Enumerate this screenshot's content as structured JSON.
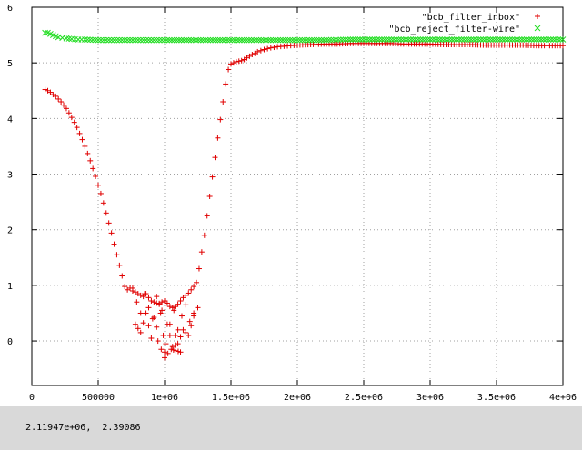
{
  "status": {
    "coords": "2.11947e+06,  2.39086"
  },
  "colors": {
    "series1": "#e00000",
    "series2": "#22dd22",
    "axis": "#000000",
    "grid": "#a0a0a0",
    "background": "#ffffff",
    "statusbar": "#d9d9d9"
  },
  "chart_data": {
    "type": "scatter",
    "title": "",
    "xlabel": "",
    "ylabel": "",
    "xlim": [
      0,
      4000000
    ],
    "ylim": [
      -0.8,
      6
    ],
    "grid": true,
    "legend_position": "top-right",
    "x_ticks": [
      {
        "value": 0,
        "label": "0"
      },
      {
        "value": 500000,
        "label": "500000"
      },
      {
        "value": 1000000,
        "label": "1e+06"
      },
      {
        "value": 1500000,
        "label": "1.5e+06"
      },
      {
        "value": 2000000,
        "label": "2e+06"
      },
      {
        "value": 2500000,
        "label": "2.5e+06"
      },
      {
        "value": 3000000,
        "label": "3e+06"
      },
      {
        "value": 3500000,
        "label": "3.5e+06"
      },
      {
        "value": 4000000,
        "label": "4e+06"
      }
    ],
    "y_ticks": [
      {
        "value": 0,
        "label": "0"
      },
      {
        "value": 1,
        "label": "1"
      },
      {
        "value": 2,
        "label": "2"
      },
      {
        "value": 3,
        "label": "3"
      },
      {
        "value": 4,
        "label": "4"
      },
      {
        "value": 5,
        "label": "5"
      },
      {
        "value": 6,
        "label": "6"
      }
    ],
    "series": [
      {
        "name": "\"bcb_filter_inbox\"",
        "marker": "+",
        "color": "#e00000",
        "x": [
          100000,
          120000,
          140000,
          160000,
          180000,
          200000,
          220000,
          240000,
          260000,
          280000,
          300000,
          320000,
          340000,
          360000,
          380000,
          400000,
          420000,
          440000,
          460000,
          480000,
          500000,
          520000,
          540000,
          560000,
          580000,
          600000,
          620000,
          640000,
          660000,
          680000,
          700000,
          720000,
          740000,
          760000,
          780000,
          800000,
          820000,
          840000,
          860000,
          880000,
          900000,
          920000,
          940000,
          960000,
          980000,
          1000000,
          1020000,
          1040000,
          1060000,
          1080000,
          1100000,
          1120000,
          1140000,
          1160000,
          1180000,
          1200000,
          1220000,
          1240000,
          1260000,
          1280000,
          1300000,
          1320000,
          1340000,
          1360000,
          1380000,
          1400000,
          1420000,
          1440000,
          1460000,
          1480000,
          1500000,
          1520000,
          1540000,
          1560000,
          1580000,
          1600000,
          1620000,
          1640000,
          1660000,
          1680000,
          1700000,
          1750000,
          1800000,
          1850000,
          1900000,
          1950000,
          2000000,
          2100000,
          2200000,
          2300000,
          2400000,
          2500000,
          2600000,
          2700000,
          2800000,
          2900000,
          3000000,
          3100000,
          3200000,
          3300000,
          3400000,
          3500000,
          3600000,
          3700000,
          3800000,
          3900000,
          4000000,
          760000,
          790000,
          820000,
          850000,
          880000,
          910000,
          940000,
          970000,
          990000,
          1010000,
          1040000,
          1070000,
          1100000,
          1130000,
          1160000,
          1190000,
          1220000,
          1250000,
          780000,
          820000,
          860000,
          900000,
          940000,
          980000,
          1000000,
          1020000,
          1060000,
          1100000,
          1140000,
          1180000,
          1220000,
          950000,
          1000000,
          1050000,
          1120000,
          1080000
        ],
        "y": [
          4.52,
          4.5,
          4.47,
          4.43,
          4.4,
          4.35,
          4.3,
          4.24,
          4.18,
          4.1,
          4.02,
          3.93,
          3.84,
          3.73,
          3.62,
          3.5,
          3.37,
          3.24,
          3.1,
          2.96,
          2.8,
          2.65,
          2.48,
          2.3,
          2.12,
          1.94,
          1.74,
          1.55,
          1.36,
          1.17,
          0.98,
          0.92,
          0.95,
          0.9,
          0.88,
          0.85,
          0.82,
          0.8,
          0.85,
          0.78,
          0.72,
          0.7,
          0.68,
          0.66,
          0.7,
          0.72,
          0.68,
          0.62,
          0.6,
          0.62,
          0.66,
          0.72,
          0.78,
          0.82,
          0.86,
          0.92,
          0.98,
          1.05,
          1.3,
          1.6,
          1.9,
          2.25,
          2.6,
          2.95,
          3.3,
          3.65,
          3.98,
          4.3,
          4.62,
          4.88,
          4.98,
          5.0,
          5.02,
          5.03,
          5.04,
          5.06,
          5.09,
          5.12,
          5.15,
          5.17,
          5.2,
          5.24,
          5.27,
          5.29,
          5.3,
          5.31,
          5.32,
          5.33,
          5.34,
          5.34,
          5.35,
          5.35,
          5.35,
          5.35,
          5.34,
          5.34,
          5.34,
          5.33,
          5.33,
          5.33,
          5.32,
          5.32,
          5.32,
          5.32,
          5.31,
          5.31,
          5.31,
          0.95,
          0.7,
          0.5,
          0.85,
          0.6,
          0.4,
          0.25,
          0.5,
          0.1,
          -0.05,
          0.3,
          0.55,
          0.2,
          0.45,
          0.65,
          0.35,
          0.5,
          0.6,
          0.3,
          0.15,
          0.5,
          0.05,
          0.8,
          0.55,
          -0.2,
          0.3,
          -0.1,
          -0.05,
          0.2,
          0.1,
          0.45,
          0.0,
          -0.3,
          -0.15,
          -0.2,
          0.1
        ]
      },
      {
        "name": "\"bcb_reject_filter-wire\"",
        "marker": "x",
        "color": "#22dd22",
        "x": [
          100000,
          120000,
          140000,
          160000,
          180000,
          200000,
          230000,
          260000,
          300000,
          350000,
          400000,
          500000,
          600000,
          700000,
          800000,
          900000,
          1000000,
          1200000,
          1400000,
          1600000,
          1800000,
          2000000,
          2200000,
          2400000,
          2600000,
          2800000,
          3000000,
          3200000,
          3400000,
          3600000,
          3800000,
          4000000
        ],
        "y": [
          5.54,
          5.54,
          5.52,
          5.5,
          5.48,
          5.46,
          5.45,
          5.44,
          5.43,
          5.42,
          5.42,
          5.41,
          5.41,
          5.41,
          5.41,
          5.41,
          5.41,
          5.41,
          5.41,
          5.41,
          5.41,
          5.41,
          5.41,
          5.42,
          5.42,
          5.42,
          5.42,
          5.42,
          5.42,
          5.42,
          5.42,
          5.42
        ]
      }
    ]
  }
}
